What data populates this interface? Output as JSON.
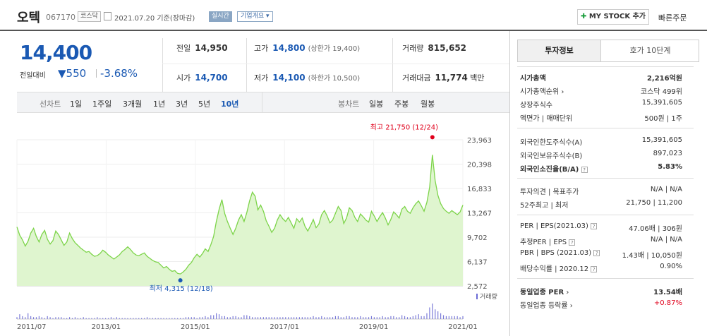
{
  "header": {
    "stock_name": "오텍",
    "stock_code": "067170",
    "market": "코스닥",
    "date": "2021.07.20  기준(장마감)",
    "live_label": "실시간",
    "corp_info_label": "기업개요",
    "mystock_label": "MY STOCK 추가",
    "quick_order_label": "빠른주문"
  },
  "current": {
    "price": "14,400",
    "prev_label": "전일대비",
    "change": "550",
    "change_rate": "-3.68%",
    "direction": "down",
    "color": "#1a59b3"
  },
  "quote": {
    "prev_close_label": "전일",
    "prev_close": "14,950",
    "high_label": "고가",
    "high": "14,800",
    "upper_limit": "(상한가 19,400)",
    "volume_label": "거래량",
    "volume": "815,652",
    "open_label": "시가",
    "open": "14,700",
    "low_label": "저가",
    "low": "14,100",
    "lower_limit": "(하한가 10,500)",
    "trade_value_label": "거래대금",
    "trade_value": "11,774",
    "trade_value_unit": "백만"
  },
  "chart_tabs": {
    "line_label": "선차트",
    "periods": [
      "1일",
      "1주일",
      "3개월",
      "1년",
      "3년",
      "5년",
      "10년"
    ],
    "selected_period": "10년",
    "candle_label": "봉차트",
    "candles": [
      "일봉",
      "주봉",
      "월봉"
    ]
  },
  "chart_data": {
    "type": "area",
    "y_ticks": [
      "23,963",
      "20,398",
      "16,833",
      "13,267",
      "9,702",
      "6,137",
      "2,572"
    ],
    "ylim": [
      2572,
      23963
    ],
    "x_ticks": [
      "2011/07",
      "2013/01",
      "2015/01",
      "2017/01",
      "2019/01",
      "2021/01"
    ],
    "max_label": "최고 21,750 (12/24)",
    "min_label": "최저 4,315 (12/18)",
    "max_value": 21750,
    "min_value": 4315,
    "volume_label": "거래량",
    "line_color": "#7dd44a",
    "fill_color": "#dff5cf",
    "marker_max_color": "#e0001b",
    "marker_min_color": "#1a59b3",
    "series": [
      {
        "values": [
          11200,
          10000,
          9300,
          8400,
          9100,
          10300,
          11000,
          9800,
          9000,
          10100,
          10700,
          9400,
          8700,
          9200,
          10600,
          10100,
          9300,
          8500,
          9000,
          10300,
          9500,
          8900,
          8500,
          8100,
          7800,
          7500,
          7600,
          7200,
          6900,
          7000,
          7300,
          7800,
          7500,
          7100,
          6800,
          6500,
          6800,
          7100,
          7600,
          7900,
          8300,
          7900,
          7400,
          7100,
          7000,
          7200,
          7400,
          6900,
          6600,
          6300,
          6100,
          6000,
          5600,
          5200,
          5400,
          5000,
          4700,
          4800,
          4400,
          4315,
          4600,
          5000,
          5600,
          6000,
          6700,
          7200,
          6800,
          7300,
          8000,
          7600,
          8600,
          9800,
          12000,
          13800,
          15200,
          13200,
          12000,
          11000,
          10100,
          11000,
          12200,
          13000,
          12000,
          13300,
          15000,
          16300,
          15700,
          13700,
          14400,
          13500,
          12100,
          11300,
          10400,
          11000,
          12200,
          13000,
          12400,
          12000,
          12600,
          11800,
          11000,
          12400,
          11900,
          12500,
          11300,
          10600,
          11400,
          12300,
          11100,
          11600,
          13000,
          13600,
          12800,
          11800,
          12200,
          13200,
          14200,
          13600,
          11700,
          12500,
          14000,
          13600,
          12600,
          12000,
          13100,
          12700,
          12200,
          11900,
          13500,
          12800,
          12000,
          12700,
          13300,
          12500,
          11500,
          12300,
          13400,
          13000,
          12500,
          13800,
          14200,
          13500,
          13200,
          14000,
          14600,
          15000,
          14300,
          13500,
          14800,
          17000,
          21750,
          18000,
          15800,
          14600,
          13900,
          13500,
          13200,
          13600,
          13300,
          13000,
          13400,
          14400
        ]
      },
      {
        "name": "거래량",
        "values": [
          2,
          5,
          3,
          2,
          6,
          3,
          2,
          2,
          3,
          2,
          1,
          3,
          2,
          1,
          2,
          2,
          2,
          1,
          1,
          2,
          1,
          2,
          1,
          1,
          2,
          1,
          1,
          1,
          1,
          2,
          1,
          1,
          1,
          1,
          2,
          1,
          2,
          1,
          1,
          1,
          1,
          1,
          1,
          1,
          1,
          1,
          1,
          2,
          1,
          1,
          1,
          1,
          1,
          1,
          1,
          1,
          1,
          1,
          1,
          1,
          1,
          2,
          2,
          2,
          2,
          1,
          2,
          2,
          3,
          2,
          4,
          4,
          6,
          5,
          3,
          3,
          2,
          2,
          3,
          3,
          2,
          2,
          4,
          4,
          3,
          2,
          2,
          2,
          2,
          2,
          2,
          2,
          2,
          2,
          2,
          2,
          2,
          2,
          2,
          2,
          2,
          2,
          2,
          2,
          2,
          2,
          2,
          3,
          2,
          2,
          3,
          2,
          2,
          2,
          2,
          3,
          3,
          2,
          2,
          3,
          3,
          2,
          2,
          2,
          3,
          2,
          2,
          2,
          3,
          2,
          2,
          2,
          3,
          2,
          2,
          3,
          3,
          2,
          2,
          4,
          3,
          2,
          2,
          3,
          4,
          5,
          3,
          3,
          6,
          12,
          16,
          10,
          8,
          6,
          4,
          3,
          3,
          3,
          3,
          3,
          2,
          3
        ]
      }
    ]
  },
  "right_panel": {
    "tab_invest": "투자정보",
    "tab_orderbook": "호가 10단계",
    "market_cap_label": "시가총액",
    "market_cap": "2,216억원",
    "market_cap_rank_label": "시가총액순위",
    "market_cap_rank": "코스닥 499위",
    "shares_label": "상장주식수",
    "shares": "15,391,605",
    "par_label": "액면가 | 매매단위",
    "par": "500원 | 1주",
    "foreign_limit_label": "외국인한도주식수(A)",
    "foreign_limit": "15,391,605",
    "foreign_hold_label": "외국인보유주식수(B)",
    "foreign_hold": "897,023",
    "foreign_rate_label": "외국인소진율(B/A)",
    "foreign_rate": "5.83%",
    "opinion_label": "투자의견 | 목표주가",
    "opinion": "N/A | N/A",
    "w52_label": "52주최고 | 최저",
    "w52": "21,750 | 11,200",
    "per_label": "PER | EPS(2021.03)",
    "per": "47.06배 | 306원",
    "est_per_label": "추정PER | EPS",
    "est_per": "N/A | N/A",
    "pbr_label": "PBR | BPS (2021.03)",
    "pbr": "1.43배 | 10,050원",
    "div_label": "배당수익률 | 2020.12",
    "div": "0.90%",
    "peer_per_label": "동일업종 PER",
    "peer_per": "13.54배",
    "peer_rate_label": "동일업종 등락률",
    "peer_rate": "+0.87%"
  }
}
